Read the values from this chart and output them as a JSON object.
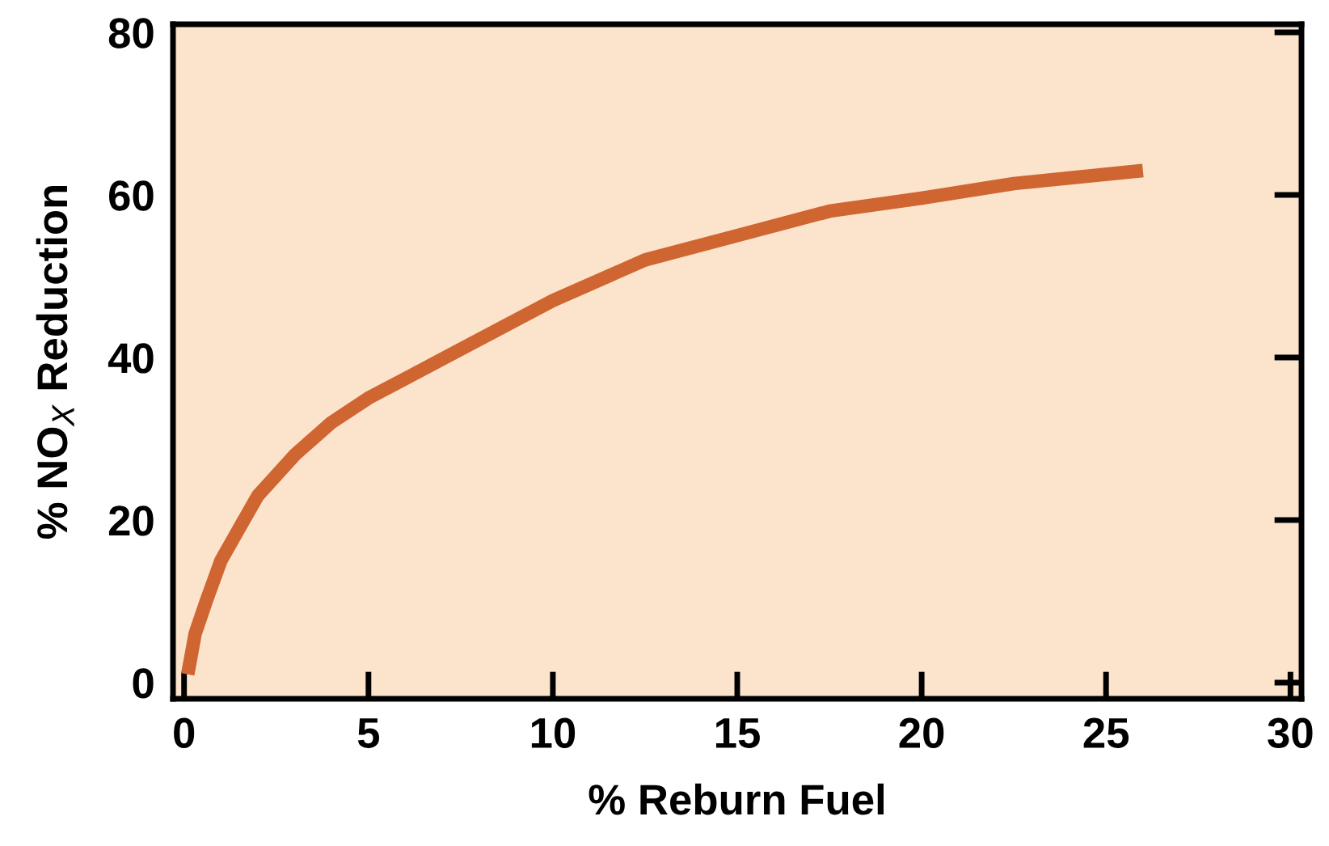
{
  "chart_data": {
    "type": "line",
    "xlabel": "% Reburn Fuel",
    "ylabel": "% NO$_{X}$ Reduction",
    "x": [
      0.1,
      0.3,
      0.6,
      1,
      1.5,
      2,
      3,
      4,
      5,
      7.5,
      10,
      12.5,
      15,
      17.5,
      20,
      22.5,
      26
    ],
    "series": [
      {
        "color": "#cf6530",
        "values": [
          1,
          6,
          10,
          15,
          19,
          23,
          28,
          32,
          35,
          41,
          47,
          52,
          55,
          58,
          59.6,
          61.4,
          63
        ]
      }
    ],
    "xlim": [
      -0.3,
      30.3
    ],
    "ylim": [
      -2,
      81
    ],
    "xticks": [
      0,
      5,
      10,
      15,
      20,
      25,
      30
    ],
    "yticks": [
      0,
      20,
      40,
      60,
      80
    ],
    "grid": false,
    "legend": false,
    "marker": "none",
    "line_style": "solid"
  }
}
